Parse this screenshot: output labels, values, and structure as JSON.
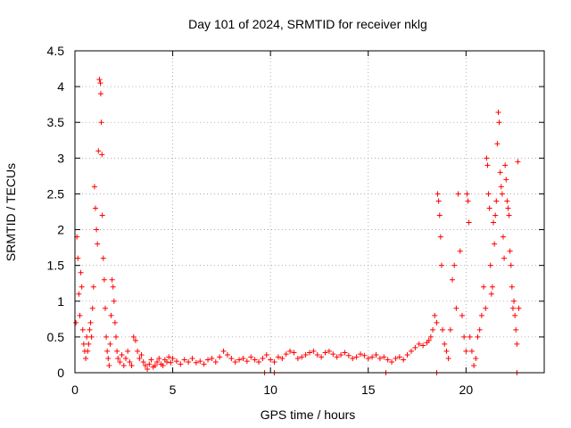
{
  "chart_data": {
    "type": "scatter",
    "title": "Day 101 of 2024, SRMTID for receiver nklg",
    "xlabel": "GPS time / hours",
    "ylabel": "SRMTID / TECUs",
    "xlim": [
      0,
      24
    ],
    "ylim": [
      0,
      4.5
    ],
    "xticks": [
      0,
      5,
      10,
      15,
      20
    ],
    "xtick_labels": [
      "0",
      "5",
      "10",
      "15",
      "20"
    ],
    "yticks": [
      0,
      0.5,
      1,
      1.5,
      2,
      2.5,
      3,
      3.5,
      4,
      4.5
    ],
    "ytick_labels": [
      "0",
      "0.5",
      "1",
      "1.5",
      "2",
      "2.5",
      "3",
      "3.5",
      "4",
      "4.5"
    ],
    "grid": true,
    "marker": "+",
    "color": "#ff0000",
    "series": [
      {
        "name": "SRMTID",
        "x": [
          0.05,
          0.1,
          0.15,
          0.2,
          0.25,
          0.3,
          0.35,
          0.4,
          0.45,
          0.5,
          0.55,
          0.6,
          0.65,
          0.7,
          0.75,
          0.8,
          0.85,
          0.9,
          0.95,
          1.0,
          1.05,
          1.1,
          1.15,
          1.2,
          1.25,
          1.3,
          1.32,
          1.35,
          1.38,
          1.4,
          1.45,
          1.5,
          1.55,
          1.6,
          1.65,
          1.7,
          1.75,
          1.8,
          1.85,
          1.9,
          1.95,
          2.0,
          2.05,
          2.1,
          2.15,
          2.2,
          2.3,
          2.4,
          2.5,
          2.6,
          2.7,
          2.8,
          2.9,
          3.0,
          3.1,
          3.2,
          3.3,
          3.4,
          3.5,
          3.6,
          3.7,
          3.8,
          3.9,
          4.0,
          4.1,
          4.2,
          4.3,
          4.4,
          4.5,
          4.6,
          4.7,
          4.8,
          4.9,
          5.0,
          5.2,
          5.4,
          5.6,
          5.8,
          6.0,
          6.2,
          6.4,
          6.6,
          6.8,
          7.0,
          7.2,
          7.4,
          7.6,
          7.8,
          8.0,
          8.2,
          8.4,
          8.6,
          8.8,
          9.0,
          9.2,
          9.4,
          9.6,
          9.8,
          10.0,
          10.2,
          10.4,
          10.6,
          10.8,
          11.0,
          11.2,
          11.4,
          11.6,
          11.8,
          12.0,
          12.2,
          12.4,
          12.6,
          12.8,
          13.0,
          13.2,
          13.4,
          13.6,
          13.8,
          14.0,
          14.2,
          14.4,
          14.6,
          14.8,
          15.0,
          15.2,
          15.4,
          15.6,
          15.8,
          16.0,
          16.2,
          16.4,
          16.6,
          16.8,
          17.0,
          17.2,
          17.4,
          17.6,
          17.8,
          18.0,
          18.1,
          18.2,
          18.3,
          18.4,
          18.5,
          18.55,
          18.6,
          18.65,
          18.7,
          18.75,
          18.8,
          18.9,
          19.0,
          19.1,
          19.2,
          19.3,
          19.4,
          19.5,
          19.6,
          19.7,
          19.8,
          19.9,
          20.0,
          20.05,
          20.1,
          20.15,
          20.2,
          20.3,
          20.4,
          20.5,
          20.6,
          20.7,
          20.8,
          20.9,
          21.0,
          21.05,
          21.1,
          21.15,
          21.2,
          21.25,
          21.3,
          21.35,
          21.4,
          21.45,
          21.5,
          21.55,
          21.6,
          21.65,
          21.7,
          21.75,
          21.8,
          21.85,
          21.9,
          21.95,
          22.0,
          22.05,
          22.1,
          22.15,
          22.2,
          22.25,
          22.3,
          22.35,
          22.4,
          22.45,
          22.5,
          22.55,
          22.6,
          22.65,
          22.7,
          9.7,
          10.2,
          15.9,
          18.5,
          22.6
        ],
        "y": [
          0.7,
          1.9,
          1.6,
          1.1,
          0.8,
          1.4,
          1.2,
          0.6,
          0.4,
          0.3,
          0.2,
          0.5,
          0.3,
          0.4,
          0.6,
          0.7,
          0.5,
          0.9,
          1.2,
          2.6,
          2.3,
          2.0,
          1.8,
          3.1,
          4.1,
          4.05,
          3.9,
          3.5,
          3.05,
          2.2,
          1.6,
          1.3,
          0.9,
          0.5,
          0.3,
          0.2,
          0.1,
          0.4,
          0.8,
          1.3,
          1.2,
          1.0,
          0.7,
          0.5,
          0.3,
          0.2,
          0.15,
          0.25,
          0.1,
          0.2,
          0.3,
          0.15,
          0.1,
          0.5,
          0.45,
          0.3,
          0.2,
          0.25,
          0.15,
          0.1,
          0.05,
          0.12,
          0.18,
          0.08,
          0.1,
          0.15,
          0.2,
          0.12,
          0.1,
          0.18,
          0.15,
          0.22,
          0.14,
          0.2,
          0.16,
          0.12,
          0.18,
          0.15,
          0.2,
          0.14,
          0.16,
          0.12,
          0.18,
          0.2,
          0.15,
          0.22,
          0.3,
          0.25,
          0.2,
          0.15,
          0.18,
          0.2,
          0.16,
          0.22,
          0.18,
          0.15,
          0.2,
          0.25,
          0.18,
          0.15,
          0.22,
          0.2,
          0.26,
          0.3,
          0.28,
          0.2,
          0.22,
          0.25,
          0.28,
          0.3,
          0.25,
          0.22,
          0.28,
          0.3,
          0.26,
          0.22,
          0.25,
          0.28,
          0.24,
          0.2,
          0.22,
          0.26,
          0.24,
          0.2,
          0.22,
          0.25,
          0.2,
          0.22,
          0.18,
          0.15,
          0.2,
          0.22,
          0.18,
          0.25,
          0.3,
          0.35,
          0.4,
          0.38,
          0.42,
          0.45,
          0.5,
          0.6,
          0.8,
          0.7,
          2.5,
          2.4,
          2.2,
          1.9,
          1.5,
          0.6,
          0.4,
          0.3,
          0.2,
          0.6,
          1.3,
          1.5,
          0.9,
          2.5,
          1.7,
          0.8,
          0.5,
          0.3,
          2.5,
          2.4,
          2.1,
          0.5,
          0.3,
          0.1,
          0.2,
          0.5,
          0.6,
          0.8,
          1.2,
          0.9,
          3.0,
          2.9,
          2.5,
          2.3,
          1.5,
          1.1,
          1.2,
          2.1,
          1.8,
          2.2,
          2.4,
          3.2,
          3.64,
          3.5,
          2.8,
          2.6,
          2.5,
          1.9,
          1.6,
          2.9,
          2.7,
          2.4,
          2.3,
          2.2,
          1.7,
          1.5,
          1.2,
          0.9,
          1.0,
          0.8,
          0.6,
          0.4,
          2.95,
          0.9,
          0.0,
          0.0,
          0.0,
          0.0,
          0.0
        ]
      }
    ]
  }
}
